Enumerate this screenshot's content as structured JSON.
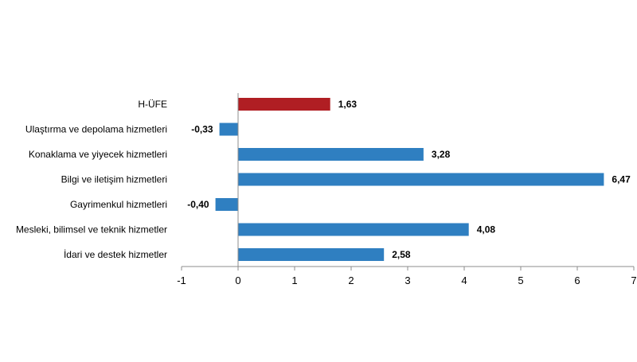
{
  "chart_data": {
    "type": "bar",
    "orientation": "horizontal",
    "categories": [
      "H-ÜFE",
      "Ulaştırma ve depolama hizmetleri",
      "Konaklama ve yiyecek hizmetleri",
      "Bilgi ve iletişim hizmetleri",
      "Gayrimenkul hizmetleri",
      "Mesleki, bilimsel ve teknik hizmetler",
      "İdari ve destek hizmetler"
    ],
    "values": [
      1.63,
      -0.33,
      3.28,
      6.47,
      -0.4,
      4.08,
      2.58
    ],
    "value_labels": [
      "1,63",
      "-0,33",
      "3,28",
      "6,47",
      "-0,40",
      "4,08",
      "2,58"
    ],
    "bar_colors": [
      "#b01e23",
      "#2f7fc1",
      "#2f7fc1",
      "#2f7fc1",
      "#2f7fc1",
      "#2f7fc1",
      "#2f7fc1"
    ],
    "xlim": [
      -1,
      7
    ],
    "xticks": [
      -1,
      0,
      1,
      2,
      3,
      4,
      5,
      6,
      7
    ],
    "xtick_labels": [
      "-1",
      "0",
      "1",
      "2",
      "3",
      "4",
      "5",
      "6",
      "7"
    ],
    "title": "",
    "xlabel": "",
    "ylabel": "",
    "grid": false,
    "legend": "none"
  }
}
